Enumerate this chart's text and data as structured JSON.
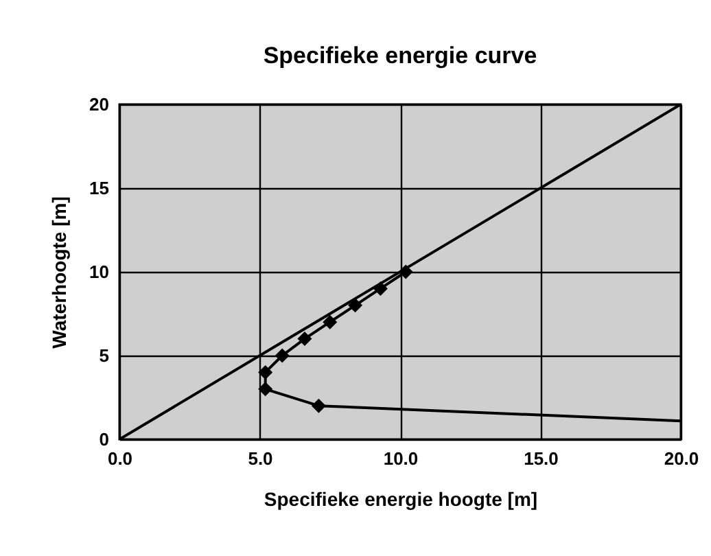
{
  "chart_data": {
    "type": "line",
    "title": "Specifieke energie curve",
    "xlabel": "Specifieke energie hoogte [m]",
    "ylabel": "Waterhoogte [m]",
    "xlim": [
      0,
      20
    ],
    "xticks": [
      {
        "value": 0,
        "label": "0.0"
      },
      {
        "value": 5,
        "label": "5.0"
      },
      {
        "value": 10,
        "label": "10.0"
      },
      {
        "value": 15,
        "label": "15.0"
      },
      {
        "value": 20,
        "label": "20.0"
      }
    ],
    "ylim": [
      0,
      20
    ],
    "yticks": [
      0,
      5,
      10,
      15,
      20
    ],
    "grid": true,
    "series": [
      {
        "color": "#000000",
        "marker": "diamond",
        "x": [
          10.2,
          9.3,
          8.4,
          7.5,
          6.6,
          5.8,
          5.2,
          5.2,
          7.1
        ],
        "values": [
          10,
          9,
          8,
          7,
          6,
          5,
          4,
          3,
          2
        ]
      },
      {
        "color": "#000000",
        "marker": "none",
        "x": [
          7.1,
          20
        ],
        "values": [
          2,
          1.1
        ]
      },
      {
        "color": "#000000",
        "marker": "none",
        "x": [
          0,
          20
        ],
        "values": [
          0,
          20
        ]
      }
    ]
  }
}
